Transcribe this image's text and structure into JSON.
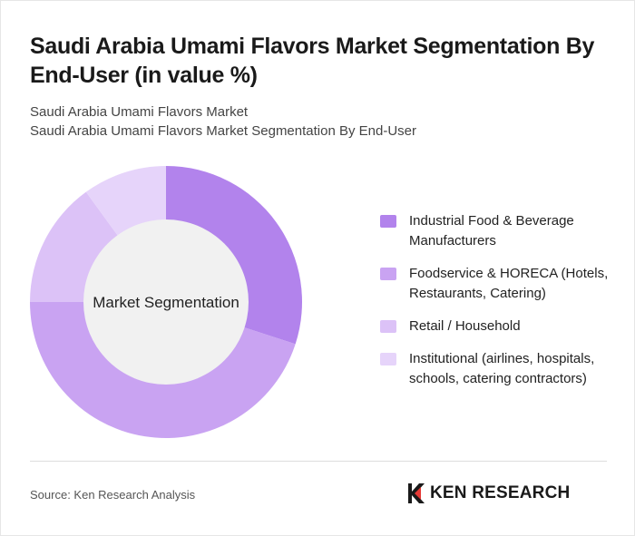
{
  "title": "Saudi Arabia Umami Flavors Market Segmentation By End-User (in value %)",
  "subtitle_1": "Saudi Arabia Umami Flavors Market",
  "subtitle_2": "Saudi Arabia Umami Flavors Market Segmentation By End-User",
  "center_label": "Market Segmentation",
  "source": "Source: Ken Research Analysis",
  "logo_text": "KEN RESEARCH",
  "chart_data": {
    "type": "pie",
    "donut": true,
    "categories": [
      "Industrial Food & Beverage Manufacturers",
      "Foodservice & HORECA (Hotels, Restaurants, Catering)",
      "Retail / Household",
      "Institutional (airlines, hospitals, schools, catering contractors)"
    ],
    "values": [
      30,
      45,
      15,
      10
    ],
    "colors": [
      "#b283ec",
      "#c9a3f2",
      "#dcc2f7",
      "#e6d4fa"
    ],
    "legend_position": "right"
  }
}
